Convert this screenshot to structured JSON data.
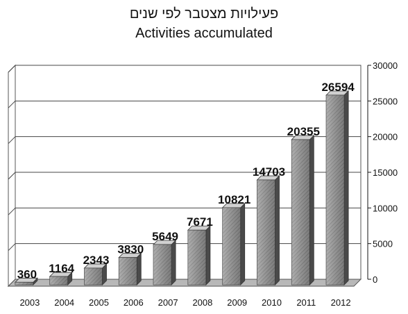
{
  "chart_data": {
    "type": "bar",
    "title_lines": [
      "פעילויות מצטבר לפי שנים",
      "Activities accumulated"
    ],
    "categories": [
      "2003",
      "2004",
      "2005",
      "2006",
      "2007",
      "2008",
      "2009",
      "2010",
      "2011",
      "2012"
    ],
    "values": [
      360,
      1164,
      2343,
      3830,
      5649,
      7671,
      10821,
      14703,
      20355,
      26594
    ],
    "y_ticks": [
      0,
      5000,
      10000,
      15000,
      20000,
      25000,
      30000
    ],
    "ylim": [
      0,
      30000
    ],
    "y_axis_side": "right",
    "grid": true,
    "style": "3d-column",
    "colors": {
      "bar_front": "#8a8a8a",
      "bar_side": "#4a4a4a",
      "bar_top": "#d0d0d0",
      "floor": "#b8b8b8"
    }
  }
}
